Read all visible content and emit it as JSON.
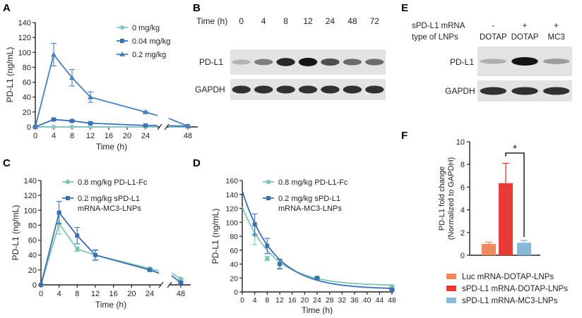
{
  "panels": {
    "A": {
      "letter": "A"
    },
    "B": {
      "letter": "B",
      "time_label": "Time (h)",
      "times": [
        "0",
        "4",
        "8",
        "12",
        "24",
        "48",
        "72"
      ],
      "rows": [
        "PD-L1",
        "GAPDH"
      ],
      "pdl1_intensity": [
        0.18,
        0.45,
        0.9,
        1.0,
        0.7,
        0.55,
        0.55
      ],
      "gapdh_intensity": [
        0.85,
        0.85,
        0.85,
        0.85,
        0.85,
        0.85,
        0.85
      ]
    },
    "C": {
      "letter": "C"
    },
    "D": {
      "letter": "D"
    },
    "E": {
      "letter": "E",
      "row1_label": "sPD-L1 mRNA",
      "row1_values": [
        "-",
        "+",
        "+"
      ],
      "row2_label": "type of LNPs",
      "row2_values": [
        "DOTAP",
        "DOTAP",
        "MC3"
      ],
      "rows": [
        "PD-L1",
        "GAPDH"
      ],
      "pdl1_intensity": [
        0.2,
        1.0,
        0.3
      ],
      "gapdh_intensity": [
        0.85,
        0.85,
        0.85
      ]
    },
    "F": {
      "letter": "F"
    }
  },
  "chart_data": [
    {
      "id": "A",
      "type": "line",
      "xlabel": "Time (h)",
      "ylabel": "PD-L1 (ng/mL)",
      "xticks": [
        "0",
        "4",
        "8",
        "12",
        "16",
        "20",
        "24",
        "48"
      ],
      "yticks": [
        0,
        20,
        40,
        60,
        80,
        100,
        120,
        140
      ],
      "ylim": [
        0,
        140
      ],
      "legend_position": "top-right",
      "series": [
        {
          "name": "0 mg/kg",
          "color": "#8ec6c9",
          "marker": "circle",
          "x": [
            0,
            4,
            8,
            12,
            24,
            48
          ],
          "y": [
            0,
            0,
            0,
            0,
            0,
            0
          ],
          "err": [
            0,
            0,
            0,
            0,
            0,
            0
          ]
        },
        {
          "name": "0.04 mg/kg",
          "color": "#3a72b2",
          "marker": "square",
          "x": [
            0,
            4,
            8,
            12,
            24,
            48
          ],
          "y": [
            0,
            10,
            8,
            5,
            2,
            1
          ],
          "err": [
            0,
            1,
            1,
            1,
            0.5,
            0
          ]
        },
        {
          "name": "0.2 mg/kg",
          "color": "#4c7fb8",
          "marker": "triangle",
          "x": [
            0,
            4,
            8,
            12,
            24,
            48
          ],
          "y": [
            0,
            97,
            66,
            40,
            20,
            1
          ],
          "err": [
            0,
            15,
            11,
            7,
            1,
            0
          ]
        }
      ]
    },
    {
      "id": "C",
      "type": "line",
      "xlabel": "Time (h)",
      "ylabel": "PD-L1 (ng/mL)",
      "xticks": [
        "0",
        "4",
        "8",
        "12",
        "16",
        "20",
        "24",
        "48"
      ],
      "yticks": [
        0,
        20,
        40,
        60,
        80,
        100,
        120,
        140
      ],
      "ylim": [
        0,
        140
      ],
      "legend_position": "top-right",
      "series": [
        {
          "name": "0.8 mg/kg PD-L1-Fc",
          "color": "#7fc4b8",
          "marker": "circle",
          "x": [
            0,
            4,
            8,
            12,
            24,
            48
          ],
          "y": [
            0,
            82,
            48,
            40,
            22,
            8
          ],
          "err": [
            0,
            14,
            3,
            6,
            1,
            1
          ]
        },
        {
          "name": "0.2 mg/kg sPD-L1 mRNA-MC3-LNPs",
          "name_lines": [
            "0.2 mg/kg sPD-L1",
            "mRNA-MC3-LNPs"
          ],
          "color": "#3e6fae",
          "marker": "square",
          "x": [
            0,
            4,
            8,
            12,
            24,
            48
          ],
          "y": [
            0,
            97,
            66,
            40,
            20,
            3
          ],
          "err": [
            0,
            15,
            11,
            7,
            1,
            1
          ]
        }
      ]
    },
    {
      "id": "D",
      "type": "scatter",
      "xlabel": "Time (h)",
      "ylabel": "PD-L1 (ng/mL)",
      "xticks": [
        "0",
        "4",
        "8",
        "12",
        "16",
        "20",
        "24",
        "28",
        "32",
        "36",
        "40",
        "44",
        "48"
      ],
      "yticks": [
        0,
        20,
        40,
        60,
        80,
        100,
        120,
        140,
        160
      ],
      "ylim": [
        0,
        160
      ],
      "xlim": [
        0,
        48
      ],
      "legend_position": "top-right",
      "series": [
        {
          "name": "0.8 mg/kg PD-L1-Fc",
          "color": "#7fc4b8",
          "marker": "circle",
          "x": [
            4,
            8,
            12,
            24,
            48
          ],
          "y": [
            82,
            48,
            40,
            20,
            8
          ],
          "err": [
            14,
            3,
            6,
            1,
            1
          ],
          "fit": {
            "a": 122,
            "k": 0.1
          }
        },
        {
          "name": "0.2 mg/kg sPD-L1 mRNA-MC3-LNPs",
          "name_lines": [
            "0.2 mg/kg sPD-L1",
            "mRNA-MC3-LNPs"
          ],
          "color": "#3e6fae",
          "marker": "square",
          "x": [
            4,
            8,
            12,
            24,
            48
          ],
          "y": [
            97,
            66,
            40,
            20,
            3
          ],
          "err": [
            15,
            11,
            7,
            1,
            1
          ],
          "fit": {
            "a": 145,
            "k": 0.1
          }
        }
      ]
    },
    {
      "id": "F",
      "type": "bar",
      "ylabel_lines": [
        "PD-L1 fold change",
        "(Normalized to GAPDH)"
      ],
      "yticks": [
        0,
        2,
        4,
        6,
        8,
        10
      ],
      "ylim": [
        0,
        10
      ],
      "categories": [
        "Luc mRNA-DOTAP-LNPs",
        "sPD-L1 mRNA-DOTAP-LNPs",
        "sPD-L1 mRNA-MC3-LNPs"
      ],
      "values": [
        1.0,
        6.35,
        1.1
      ],
      "err": [
        0.15,
        1.75,
        0.2
      ],
      "colors": [
        "#ee8a5e",
        "#e83a34",
        "#86b9d6"
      ],
      "significance": {
        "label": "*",
        "between": [
          1,
          2
        ]
      },
      "legend_position": "bottom"
    }
  ]
}
